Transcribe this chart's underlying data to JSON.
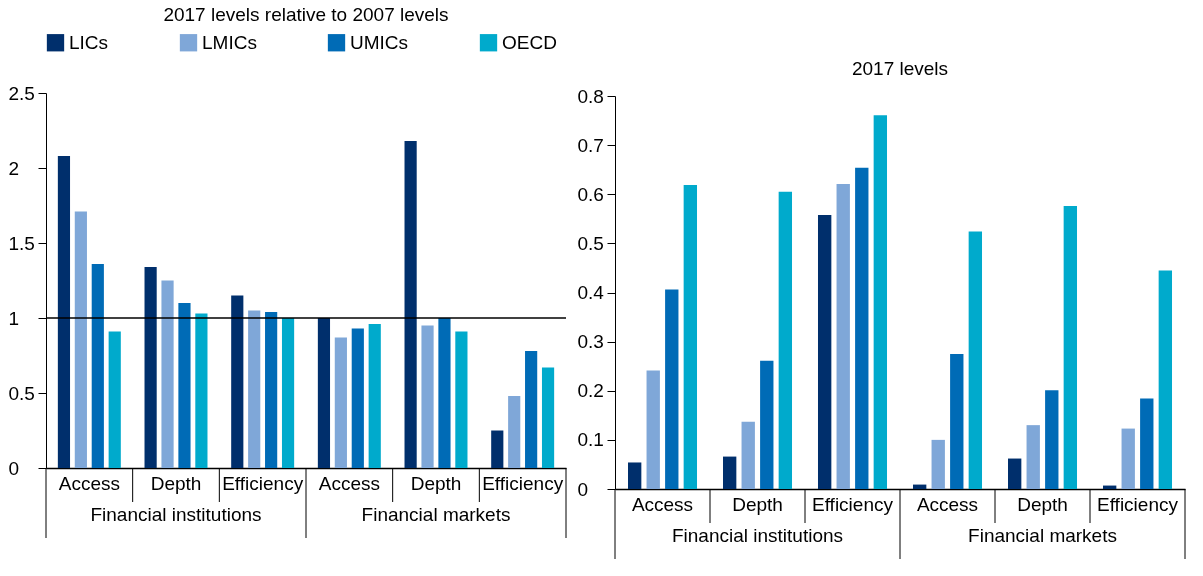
{
  "chart_data": [
    {
      "type": "bar",
      "title": "2017 levels relative to 2007 levels",
      "categories": [
        "Access",
        "Depth",
        "Efficiency",
        "Access",
        "Depth",
        "Efficiency"
      ],
      "annotations": [
        "Financial institutions",
        "Financial markets"
      ],
      "series": [
        {
          "name": "LICs",
          "color": "#002f6c",
          "values": [
            2.08,
            1.34,
            1.15,
            1.0,
            2.18,
            0.25
          ]
        },
        {
          "name": "LMICs",
          "color": "#7fa7d8",
          "values": [
            1.71,
            1.25,
            1.05,
            0.87,
            0.95,
            0.48
          ]
        },
        {
          "name": "UMICs",
          "color": "#006bb6",
          "values": [
            1.36,
            1.1,
            1.04,
            0.93,
            1.0,
            0.78
          ]
        },
        {
          "name": "OECD",
          "color": "#00aacc",
          "values": [
            0.91,
            1.03,
            1.0,
            0.96,
            0.91,
            0.67
          ]
        }
      ],
      "ylim": [
        0,
        2.5
      ],
      "yticks": [
        0,
        0.5,
        1,
        1.5,
        2,
        2.5
      ],
      "ref_lines": [
        {
          "axis": "y",
          "value": 1
        }
      ],
      "grid": false,
      "legend": "top"
    },
    {
      "type": "bar",
      "title": "2017 levels",
      "categories": [
        "Access",
        "Depth",
        "Efficiency",
        "Access",
        "Depth",
        "Efficiency"
      ],
      "annotations": [
        "Financial institutions",
        "Financial markets"
      ],
      "series": [
        {
          "color": "#002f6c",
          "values": [
            0.054,
            0.066,
            0.558,
            0.009,
            0.062,
            0.007
          ]
        },
        {
          "color": "#7fa7d8",
          "values": [
            0.241,
            0.137,
            0.621,
            0.1,
            0.13,
            0.123
          ]
        },
        {
          "color": "#006bb6",
          "values": [
            0.406,
            0.261,
            0.654,
            0.275,
            0.201,
            0.184
          ]
        },
        {
          "color": "#00aacc",
          "values": [
            0.619,
            0.605,
            0.761,
            0.524,
            0.576,
            0.445
          ]
        }
      ],
      "ylim": [
        0,
        0.8
      ],
      "yticks": [
        0,
        0.1,
        0.2,
        0.3,
        0.4,
        0.5,
        0.6,
        0.7,
        0.8
      ],
      "grid": false
    }
  ]
}
